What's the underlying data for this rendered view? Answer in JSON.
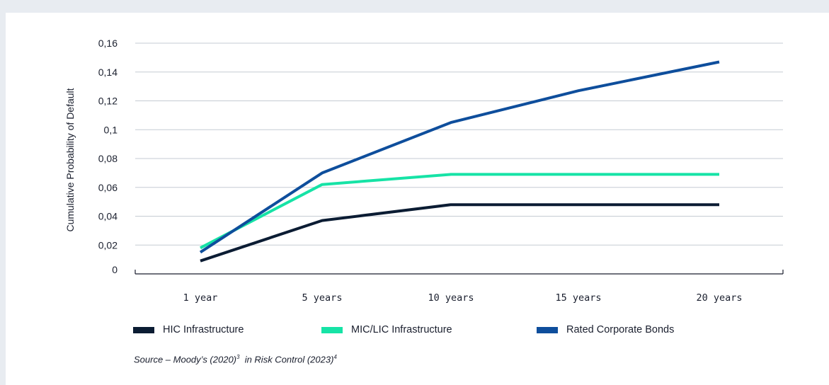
{
  "chart_data": {
    "type": "line",
    "categories": [
      "1 year",
      "5 years",
      "10 years",
      "15 years",
      "20 years"
    ],
    "series": [
      {
        "name": "HIC Infrastructure",
        "color": "#0b1c33",
        "values": [
          0.009,
          0.037,
          0.048,
          0.048,
          0.048
        ]
      },
      {
        "name": "MIC/LIC Infrastructure",
        "color": "#16e3a6",
        "values": [
          0.018,
          0.062,
          0.069,
          0.069,
          0.069
        ]
      },
      {
        "name": "Rated Corporate Bonds",
        "color": "#0e4e9c",
        "values": [
          0.015,
          0.07,
          0.105,
          0.127,
          0.147
        ]
      }
    ],
    "yticks": [
      "0",
      "0,02",
      "0,04",
      "0,06",
      "0,08",
      "0,1",
      "0,12",
      "0,14",
      "0,16"
    ],
    "ylabel": "Cumulative Probability of Default",
    "ylim": [
      0,
      0.16
    ],
    "grid": true,
    "legend_position": "bottom"
  },
  "source": {
    "text1": "Source – Moody’s (2020)",
    "sup1": "3",
    "text2": "  in Risk Control (2023)",
    "sup2": "4"
  }
}
